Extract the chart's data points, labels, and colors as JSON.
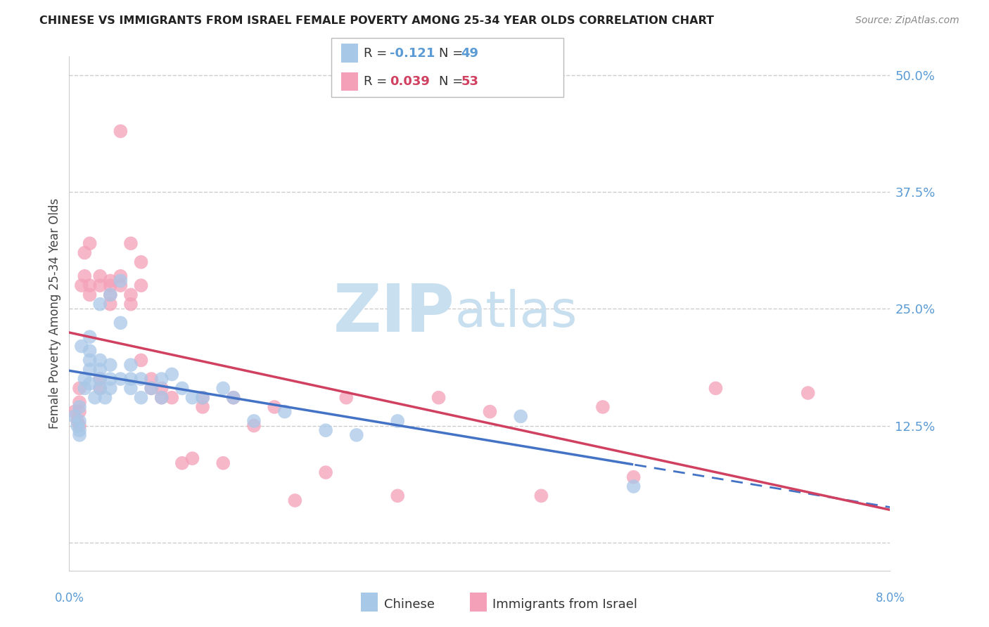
{
  "title": "CHINESE VS IMMIGRANTS FROM ISRAEL FEMALE POVERTY AMONG 25-34 YEAR OLDS CORRELATION CHART",
  "source": "Source: ZipAtlas.com",
  "ylabel": "Female Poverty Among 25-34 Year Olds",
  "xmin": 0.0,
  "xmax": 0.08,
  "ymin": -0.03,
  "ymax": 0.52,
  "right_yticks": [
    0.0,
    0.125,
    0.25,
    0.375,
    0.5
  ],
  "right_yticklabels": [
    "",
    "12.5%",
    "25.0%",
    "37.5%",
    "50.0%"
  ],
  "chinese_R": -0.121,
  "chinese_N": 49,
  "israel_R": 0.039,
  "israel_N": 53,
  "chinese_color": "#a8c8e8",
  "israel_color": "#f4a0b8",
  "chinese_line_color": "#4472c4",
  "israel_line_color": "#d04060",
  "legend_label_chinese": "Chinese",
  "legend_label_israel": "Immigrants from Israel",
  "watermark_zip_color": "#c8dff0",
  "watermark_atlas_color": "#c8dff0",
  "chinese_x": [
    0.0005,
    0.0008,
    0.001,
    0.001,
    0.001,
    0.001,
    0.0012,
    0.0015,
    0.0015,
    0.002,
    0.002,
    0.002,
    0.002,
    0.002,
    0.0025,
    0.003,
    0.003,
    0.003,
    0.003,
    0.003,
    0.0035,
    0.004,
    0.004,
    0.004,
    0.004,
    0.005,
    0.005,
    0.005,
    0.006,
    0.006,
    0.006,
    0.007,
    0.007,
    0.008,
    0.009,
    0.009,
    0.01,
    0.011,
    0.012,
    0.013,
    0.015,
    0.016,
    0.018,
    0.021,
    0.025,
    0.028,
    0.032,
    0.044,
    0.055
  ],
  "chinese_y": [
    0.135,
    0.125,
    0.115,
    0.12,
    0.13,
    0.145,
    0.21,
    0.175,
    0.165,
    0.185,
    0.17,
    0.195,
    0.205,
    0.22,
    0.155,
    0.175,
    0.165,
    0.185,
    0.195,
    0.255,
    0.155,
    0.19,
    0.175,
    0.165,
    0.265,
    0.235,
    0.28,
    0.175,
    0.19,
    0.175,
    0.165,
    0.175,
    0.155,
    0.165,
    0.175,
    0.155,
    0.18,
    0.165,
    0.155,
    0.155,
    0.165,
    0.155,
    0.13,
    0.14,
    0.12,
    0.115,
    0.13,
    0.135,
    0.06
  ],
  "israel_x": [
    0.0005,
    0.0008,
    0.001,
    0.001,
    0.001,
    0.001,
    0.0012,
    0.0015,
    0.0015,
    0.002,
    0.002,
    0.002,
    0.003,
    0.003,
    0.003,
    0.003,
    0.004,
    0.004,
    0.004,
    0.004,
    0.005,
    0.005,
    0.005,
    0.006,
    0.006,
    0.006,
    0.007,
    0.007,
    0.007,
    0.008,
    0.008,
    0.009,
    0.009,
    0.01,
    0.011,
    0.012,
    0.013,
    0.013,
    0.015,
    0.016,
    0.018,
    0.02,
    0.022,
    0.025,
    0.027,
    0.032,
    0.036,
    0.041,
    0.046,
    0.052,
    0.055,
    0.063,
    0.072
  ],
  "israel_y": [
    0.14,
    0.13,
    0.125,
    0.14,
    0.15,
    0.165,
    0.275,
    0.285,
    0.31,
    0.265,
    0.275,
    0.32,
    0.165,
    0.175,
    0.285,
    0.275,
    0.28,
    0.265,
    0.275,
    0.255,
    0.44,
    0.285,
    0.275,
    0.32,
    0.265,
    0.255,
    0.3,
    0.275,
    0.195,
    0.165,
    0.175,
    0.165,
    0.155,
    0.155,
    0.085,
    0.09,
    0.155,
    0.145,
    0.085,
    0.155,
    0.125,
    0.145,
    0.045,
    0.075,
    0.155,
    0.05,
    0.155,
    0.14,
    0.05,
    0.145,
    0.07,
    0.165,
    0.16
  ]
}
